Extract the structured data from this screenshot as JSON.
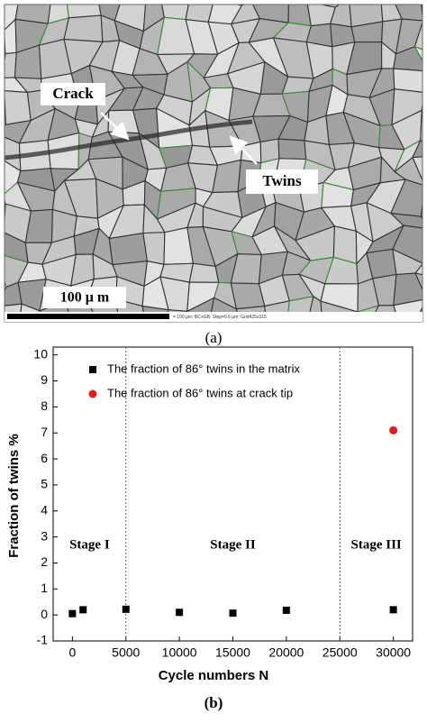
{
  "figure_a": {
    "labels": [
      "Crack",
      "Twins"
    ],
    "scale_label": "100 μ m",
    "scale_info": "= 100 µm; BC+GB; Step=0.6 µm; Grid425x315",
    "caption": "(a)"
  },
  "chart_data": {
    "type": "scatter",
    "caption": "(b)",
    "x_label": "Cycle numbers N",
    "y_label": "Fraction of twins %",
    "xlim": [
      -1800,
      31800
    ],
    "xticks": [
      0,
      5000,
      10000,
      15000,
      20000,
      25000,
      30000
    ],
    "ylim": [
      -1,
      10.3
    ],
    "yticks": [
      -1,
      0,
      1,
      2,
      3,
      4,
      5,
      6,
      7,
      8,
      9,
      10
    ],
    "vlines": [
      5000,
      25000
    ],
    "stages": [
      "Stage I",
      "Stage II",
      "Stage III"
    ],
    "legend": "upper left",
    "series": [
      {
        "name": "The fraction of 86° twins in the matrix",
        "color": "#000000",
        "marker": "square",
        "x": [
          0,
          1000,
          5000,
          10000,
          15000,
          20000,
          30000
        ],
        "values": [
          0.05,
          0.2,
          0.22,
          0.1,
          0.07,
          0.18,
          0.2
        ]
      },
      {
        "name": "The fraction of 86° twins at crack tip",
        "color": "#e41a1c",
        "marker": "circle",
        "x": [
          30000
        ],
        "values": [
          7.1
        ]
      }
    ]
  }
}
